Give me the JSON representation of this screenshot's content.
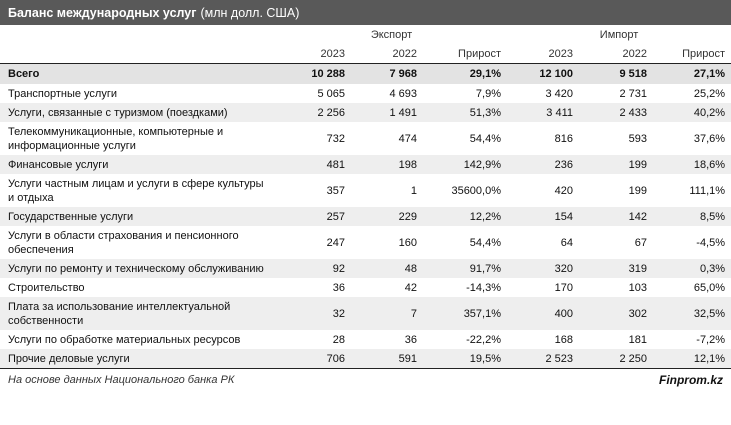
{
  "header": {
    "title_bold": "Баланс международных услуг",
    "title_rest": "(млн долл. США)"
  },
  "columns": {
    "export_group": "Экспорт",
    "import_group": "Импорт",
    "export": [
      "2023",
      "2022",
      "Прирост"
    ],
    "import": [
      "2023",
      "2022",
      "Прирост"
    ]
  },
  "total": {
    "name": "Всего",
    "values": [
      "10 288",
      "7 968",
      "29,1%",
      "12 100",
      "9 518",
      "27,1%"
    ]
  },
  "rows": [
    {
      "name": "Транспортные услуги",
      "values": [
        "5 065",
        "4 693",
        "7,9%",
        "3 420",
        "2 731",
        "25,2%"
      ]
    },
    {
      "name": "Услуги, связанные с туризмом (поездками)",
      "values": [
        "2 256",
        "1 491",
        "51,3%",
        "3 411",
        "2 433",
        "40,2%"
      ]
    },
    {
      "name": "Телекоммуникационные, компьютерные и информационные услуги",
      "values": [
        "732",
        "474",
        "54,4%",
        "816",
        "593",
        "37,6%"
      ]
    },
    {
      "name": "Финансовые услуги",
      "values": [
        "481",
        "198",
        "142,9%",
        "236",
        "199",
        "18,6%"
      ]
    },
    {
      "name": "Услуги частным лицам и услуги в сфере культуры и отдыха",
      "values": [
        "357",
        "1",
        "35600,0%",
        "420",
        "199",
        "111,1%"
      ]
    },
    {
      "name": "Государственные услуги",
      "values": [
        "257",
        "229",
        "12,2%",
        "154",
        "142",
        "8,5%"
      ]
    },
    {
      "name": "Услуги в области страхования и пенсионного обеспечения",
      "values": [
        "247",
        "160",
        "54,4%",
        "64",
        "67",
        "-4,5%"
      ]
    },
    {
      "name": "Услуги по ремонту и техническому обслуживанию",
      "values": [
        "92",
        "48",
        "91,7%",
        "320",
        "319",
        "0,3%"
      ]
    },
    {
      "name": "Строительство",
      "values": [
        "36",
        "42",
        "-14,3%",
        "170",
        "103",
        "65,0%"
      ]
    },
    {
      "name": "Плата за использование интеллектуальной собственности",
      "values": [
        "32",
        "7",
        "357,1%",
        "400",
        "302",
        "32,5%"
      ]
    },
    {
      "name": "Услуги по обработке материальных ресурсов",
      "values": [
        "28",
        "36",
        "-22,2%",
        "168",
        "181",
        "-7,2%"
      ]
    },
    {
      "name": "Прочие деловые услуги",
      "values": [
        "706",
        "591",
        "19,5%",
        "2 523",
        "2 250",
        "12,1%"
      ]
    }
  ],
  "footer": {
    "source": "На основе данных Национального банка РК",
    "brand": "Finprom.kz"
  }
}
